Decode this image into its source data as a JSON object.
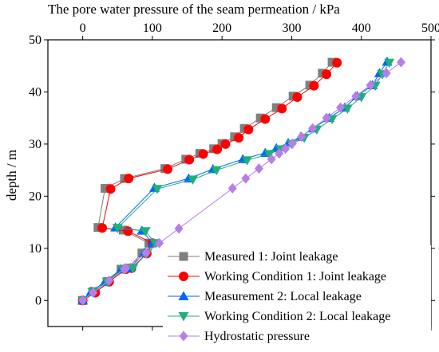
{
  "chart_data": {
    "type": "line",
    "title": "",
    "xlabel": "The pore water pressure of the seam permeation / kPa",
    "ylabel": "depth / m",
    "xlim": [
      -50,
      500
    ],
    "ylim": [
      -5,
      50
    ],
    "x_ticks": [
      0,
      100,
      200,
      300,
      400,
      500
    ],
    "y_ticks": [
      0,
      10,
      20,
      30,
      40,
      50
    ],
    "x_axis_position": "top",
    "grid": false,
    "legend_position": "bottom-right",
    "series": [
      {
        "name": "Measured 1: Joint leakage",
        "color": "#7f7f7f",
        "marker": "square",
        "points": [
          [
            0,
            0
          ],
          [
            15,
            1.7
          ],
          [
            35,
            3.6
          ],
          [
            55,
            6
          ],
          [
            65,
            6.2
          ],
          [
            85,
            9.1
          ],
          [
            95,
            11
          ],
          [
            58,
            13.5
          ],
          [
            22,
            14
          ],
          [
            32,
            21.5
          ],
          [
            60,
            23.4
          ],
          [
            118,
            25.3
          ],
          [
            148,
            27.1
          ],
          [
            168,
            28.2
          ],
          [
            188,
            29.1
          ],
          [
            200,
            30.1
          ],
          [
            218,
            31.4
          ],
          [
            232,
            33
          ],
          [
            255,
            35
          ],
          [
            278,
            37
          ],
          [
            302,
            39.2
          ],
          [
            326,
            41.3
          ],
          [
            344,
            43.6
          ],
          [
            358,
            45.7
          ]
        ]
      },
      {
        "name": "Working Condition 1: Joint leakage",
        "color": "#ff0000",
        "marker": "circle",
        "points": [
          [
            0,
            0
          ],
          [
            18,
            1.5
          ],
          [
            38,
            3.6
          ],
          [
            62,
            6
          ],
          [
            70,
            6.2
          ],
          [
            92,
            9
          ],
          [
            100,
            11
          ],
          [
            65,
            13.3
          ],
          [
            28,
            13.9
          ],
          [
            40,
            21.4
          ],
          [
            66,
            23.4
          ],
          [
            122,
            25.2
          ],
          [
            153,
            27
          ],
          [
            173,
            28.1
          ],
          [
            193,
            29
          ],
          [
            205,
            30
          ],
          [
            224,
            31.2
          ],
          [
            238,
            32.8
          ],
          [
            262,
            34.8
          ],
          [
            286,
            36.8
          ],
          [
            308,
            39
          ],
          [
            332,
            41.2
          ],
          [
            350,
            43.4
          ],
          [
            365,
            45.6
          ]
        ]
      },
      {
        "name": "Measurement 2: Local leakage",
        "color": "#0066ff",
        "marker": "triangle-up",
        "points": [
          [
            0,
            0
          ],
          [
            12,
            1.7
          ],
          [
            32,
            3.6
          ],
          [
            55,
            6
          ],
          [
            68,
            6.2
          ],
          [
            88,
            9.1
          ],
          [
            100,
            11
          ],
          [
            85,
            13.4
          ],
          [
            47,
            14
          ],
          [
            103,
            21.6
          ],
          [
            152,
            23.4
          ],
          [
            187,
            25.2
          ],
          [
            230,
            27.1
          ],
          [
            262,
            28.3
          ],
          [
            278,
            29.2
          ],
          [
            295,
            30.2
          ],
          [
            313,
            31.4
          ],
          [
            330,
            33
          ],
          [
            354,
            35
          ],
          [
            376,
            37
          ],
          [
            394,
            39.2
          ],
          [
            416,
            41.3
          ],
          [
            426,
            43.6
          ],
          [
            437,
            45.8
          ]
        ]
      },
      {
        "name": "Working Condition 2: Local leakage",
        "color": "#1fb07a",
        "marker": "triangle-down",
        "points": [
          [
            0,
            0
          ],
          [
            14,
            1.6
          ],
          [
            35,
            3.6
          ],
          [
            58,
            6
          ],
          [
            72,
            6.2
          ],
          [
            92,
            9
          ],
          [
            104,
            11
          ],
          [
            90,
            13.3
          ],
          [
            50,
            13.9
          ],
          [
            107,
            21.4
          ],
          [
            158,
            23.2
          ],
          [
            192,
            25
          ],
          [
            236,
            26.9
          ],
          [
            268,
            28.1
          ],
          [
            284,
            29
          ],
          [
            300,
            30
          ],
          [
            318,
            31.2
          ],
          [
            336,
            32.8
          ],
          [
            358,
            34.8
          ],
          [
            380,
            36.8
          ],
          [
            400,
            39
          ],
          [
            420,
            41.2
          ],
          [
            430,
            43.4
          ],
          [
            440,
            45.6
          ]
        ]
      },
      {
        "name": "Hydrostatic pressure",
        "color": "#b87ee8",
        "marker": "diamond",
        "points": [
          [
            0,
            0
          ],
          [
            15,
            1.5
          ],
          [
            38,
            3.8
          ],
          [
            60,
            6
          ],
          [
            62,
            6.2
          ],
          [
            91,
            9.1
          ],
          [
            110,
            11
          ],
          [
            138,
            13.8
          ],
          [
            215,
            21.5
          ],
          [
            234,
            23.4
          ],
          [
            253,
            25.3
          ],
          [
            271,
            27.1
          ],
          [
            282,
            28.2
          ],
          [
            291,
            29.1
          ],
          [
            301,
            30.1
          ],
          [
            314,
            31.4
          ],
          [
            330,
            33
          ],
          [
            350,
            35
          ],
          [
            370,
            37
          ],
          [
            392,
            39.2
          ],
          [
            413,
            41.3
          ],
          [
            436,
            43.6
          ],
          [
            457,
            45.7
          ]
        ]
      }
    ]
  }
}
